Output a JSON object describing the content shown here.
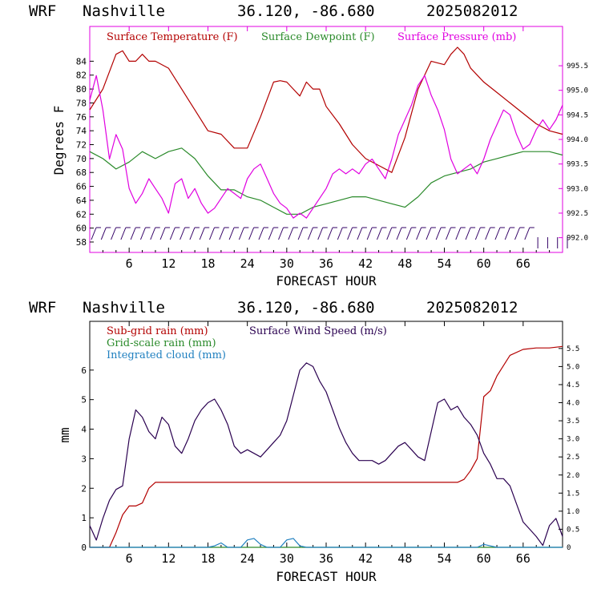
{
  "colors": {
    "temperature": "#b30000",
    "dewpoint": "#2a8a2a",
    "pressure": "#e000e0",
    "subgrid_rain": "#b30000",
    "grid_rain": "#2a8a2a",
    "cloud": "#2080c0",
    "wind": "#2a0050",
    "barb": "#330066",
    "frame_top": "#e000e0",
    "frame_bottom": "#000000"
  },
  "chart_data": [
    {
      "type": "line",
      "header": {
        "model": "WRF",
        "station": "Nashville",
        "coords": "36.120, -86.680",
        "run": "2025082012"
      },
      "xlabel": "FORECAST HOUR",
      "ylabel": "Degrees F",
      "x_ticks": [
        "6",
        "12",
        "18",
        "24",
        "30",
        "36",
        "42",
        "48",
        "54",
        "60",
        "66"
      ],
      "x_tick_values": [
        6,
        12,
        18,
        24,
        30,
        36,
        42,
        48,
        54,
        60,
        66
      ],
      "xlim": [
        0,
        72
      ],
      "ylim": [
        56.5,
        89
      ],
      "y_ticks": [
        "58",
        "60",
        "62",
        "64",
        "66",
        "68",
        "70",
        "72",
        "74",
        "76",
        "78",
        "80",
        "82",
        "84"
      ],
      "y_tick_values": [
        58,
        60,
        62,
        64,
        66,
        68,
        70,
        72,
        74,
        76,
        78,
        80,
        82,
        84
      ],
      "y2lim": [
        991.7,
        996.3
      ],
      "y2_ticks": [
        "992.0",
        "992.5",
        "993.0",
        "993.5",
        "994.0",
        "994.5",
        "995.0",
        "995.5"
      ],
      "y2_tick_values": [
        992.0,
        992.5,
        993.0,
        993.5,
        994.0,
        994.5,
        995.0,
        995.5
      ],
      "legend": [
        "Surface Temperature (F)",
        "Surface Dewpoint (F)",
        "Surface Pressure (mb)"
      ],
      "series": [
        {
          "name": "Surface Temperature (F)",
          "axis": "left",
          "x": [
            0,
            2,
            4,
            5,
            6,
            7,
            8,
            9,
            10,
            12,
            14,
            16,
            18,
            20,
            22,
            24,
            26,
            28,
            29,
            30,
            31,
            32,
            33,
            34,
            35,
            36,
            38,
            40,
            42,
            44,
            46,
            48,
            50,
            52,
            54,
            55,
            56,
            57,
            58,
            60,
            62,
            64,
            66,
            68,
            70,
            72
          ],
          "y": [
            77,
            80,
            85,
            85.5,
            84,
            84,
            85,
            84,
            84,
            83,
            80,
            77,
            74,
            73.5,
            71.5,
            71.5,
            76,
            81,
            81.2,
            81,
            80,
            79,
            81,
            80,
            80,
            77.5,
            75,
            72,
            70,
            69,
            68,
            73,
            80,
            84,
            83.5,
            85,
            86,
            85,
            83,
            81,
            79.5,
            78,
            76.5,
            75,
            74,
            73.5
          ]
        },
        {
          "name": "Surface Dewpoint (F)",
          "axis": "left",
          "x": [
            0,
            2,
            4,
            6,
            8,
            10,
            12,
            14,
            16,
            18,
            20,
            22,
            24,
            26,
            28,
            30,
            32,
            34,
            36,
            38,
            40,
            42,
            44,
            46,
            48,
            50,
            52,
            54,
            56,
            58,
            60,
            62,
            64,
            66,
            68,
            70,
            72
          ],
          "y": [
            71,
            70,
            68.5,
            69.5,
            71,
            70,
            71,
            71.5,
            70,
            67.5,
            65.5,
            65.5,
            64.5,
            64,
            63,
            62,
            62,
            63,
            63.5,
            64,
            64.5,
            64.5,
            64,
            63.5,
            63,
            64.5,
            66.5,
            67.5,
            68,
            68.5,
            69.5,
            70,
            70.5,
            71,
            71,
            71,
            70.5
          ]
        },
        {
          "name": "Surface Pressure (mb)",
          "axis": "right",
          "x": [
            0,
            1,
            2,
            3,
            4,
            5,
            6,
            7,
            8,
            9,
            10,
            11,
            12,
            13,
            14,
            15,
            16,
            17,
            18,
            19,
            20,
            21,
            22,
            23,
            24,
            25,
            26,
            27,
            28,
            29,
            30,
            31,
            32,
            33,
            34,
            35,
            36,
            37,
            38,
            39,
            40,
            41,
            42,
            43,
            44,
            45,
            46,
            47,
            48,
            49,
            50,
            51,
            52,
            53,
            54,
            55,
            56,
            57,
            58,
            59,
            60,
            61,
            62,
            63,
            64,
            65,
            66,
            67,
            68,
            69,
            70,
            71,
            72
          ],
          "y": [
            994.8,
            995.3,
            994.6,
            993.6,
            994.1,
            993.8,
            993.0,
            992.7,
            992.9,
            993.2,
            993.0,
            992.8,
            992.5,
            993.1,
            993.2,
            992.8,
            993.0,
            992.7,
            992.5,
            992.6,
            992.8,
            993.0,
            992.9,
            992.8,
            993.2,
            993.4,
            993.5,
            993.2,
            992.9,
            992.7,
            992.6,
            992.4,
            992.5,
            992.4,
            992.6,
            992.8,
            993.0,
            993.3,
            993.4,
            993.3,
            993.4,
            993.3,
            993.5,
            993.6,
            993.4,
            993.2,
            993.6,
            994.1,
            994.4,
            994.7,
            995.1,
            995.3,
            994.9,
            994.6,
            994.2,
            993.6,
            993.3,
            993.4,
            993.5,
            993.3,
            993.6,
            994.0,
            994.3,
            994.6,
            994.5,
            994.1,
            993.8,
            993.9,
            994.2,
            994.4,
            994.2,
            994.4,
            994.7
          ]
        }
      ]
    },
    {
      "type": "line",
      "header": {
        "model": "WRF",
        "station": "Nashville",
        "coords": "36.120, -86.680",
        "run": "2025082012"
      },
      "xlabel": "FORECAST HOUR",
      "ylabel": "mm",
      "x_ticks": [
        "6",
        "12",
        "18",
        "24",
        "30",
        "36",
        "42",
        "48",
        "54",
        "60",
        "66"
      ],
      "x_tick_values": [
        6,
        12,
        18,
        24,
        30,
        36,
        42,
        48,
        54,
        60,
        66
      ],
      "xlim": [
        0,
        72
      ],
      "ylim": [
        0,
        7.65
      ],
      "y_ticks": [
        "0",
        "1",
        "2",
        "3",
        "4",
        "5",
        "6"
      ],
      "y_tick_values": [
        0,
        1,
        2,
        3,
        4,
        5,
        6
      ],
      "y2lim": [
        0,
        6.25
      ],
      "y2_ticks": [
        "0",
        "0.5",
        "1.0",
        "1.5",
        "2.0",
        "2.5",
        "3.0",
        "3.5",
        "4.0",
        "4.5",
        "5.0",
        "5.5"
      ],
      "y2_tick_values": [
        0,
        0.5,
        1.0,
        1.5,
        2.0,
        2.5,
        3.0,
        3.5,
        4.0,
        4.5,
        5.0,
        5.5
      ],
      "legend": [
        "Sub-grid rain (mm)",
        "Grid-scale rain (mm)",
        "Integrated cloud (mm)",
        "Surface Wind Speed (m/s)"
      ],
      "series": [
        {
          "name": "Sub-grid rain (mm)",
          "axis": "left",
          "x": [
            0,
            3,
            4,
            5,
            6,
            7,
            8,
            9,
            10,
            12,
            20,
            30,
            40,
            50,
            56,
            57,
            58,
            59,
            60,
            61,
            62,
            64,
            66,
            68,
            70,
            72
          ],
          "y": [
            0,
            0,
            0.5,
            1.1,
            1.4,
            1.4,
            1.5,
            2.0,
            2.2,
            2.2,
            2.2,
            2.2,
            2.2,
            2.2,
            2.2,
            2.3,
            2.6,
            3.0,
            5.1,
            5.3,
            5.8,
            6.5,
            6.7,
            6.75,
            6.75,
            6.8
          ]
        },
        {
          "name": "Grid-scale rain (mm)",
          "axis": "left",
          "x": [
            0,
            72
          ],
          "y": [
            0,
            0
          ]
        },
        {
          "name": "Integrated cloud (mm)",
          "axis": "left",
          "x": [
            0,
            18,
            19,
            20,
            21,
            23,
            24,
            25,
            26,
            27,
            29,
            30,
            31,
            32,
            33,
            59,
            60,
            61,
            62,
            72
          ],
          "y": [
            0,
            0,
            0.05,
            0.15,
            0,
            0,
            0.25,
            0.3,
            0.1,
            0,
            0,
            0.25,
            0.3,
            0.05,
            0,
            0,
            0.1,
            0.05,
            0,
            0
          ]
        },
        {
          "name": "Surface Wind Speed (m/s)",
          "axis": "right",
          "x": [
            0,
            1,
            2,
            3,
            4,
            5,
            6,
            7,
            8,
            9,
            10,
            11,
            12,
            13,
            14,
            15,
            16,
            17,
            18,
            19,
            20,
            21,
            22,
            23,
            24,
            25,
            26,
            27,
            28,
            29,
            30,
            31,
            32,
            33,
            34,
            35,
            36,
            37,
            38,
            39,
            40,
            41,
            42,
            43,
            44,
            45,
            46,
            47,
            48,
            49,
            50,
            51,
            52,
            53,
            54,
            55,
            56,
            57,
            58,
            59,
            60,
            61,
            62,
            63,
            64,
            65,
            66,
            67,
            68,
            69,
            70,
            71,
            72
          ],
          "y": [
            0.6,
            0.2,
            0.8,
            1.3,
            1.6,
            1.7,
            3.0,
            3.8,
            3.6,
            3.2,
            3.0,
            3.6,
            3.4,
            2.8,
            2.6,
            3.0,
            3.5,
            3.8,
            4.0,
            4.1,
            3.8,
            3.4,
            2.8,
            2.6,
            2.7,
            2.6,
            2.5,
            2.7,
            2.9,
            3.1,
            3.5,
            4.2,
            4.9,
            5.1,
            5.0,
            4.6,
            4.3,
            3.8,
            3.3,
            2.9,
            2.6,
            2.4,
            2.4,
            2.4,
            2.3,
            2.4,
            2.6,
            2.8,
            2.9,
            2.7,
            2.5,
            2.4,
            3.2,
            4.0,
            4.1,
            3.8,
            3.9,
            3.6,
            3.4,
            3.1,
            2.6,
            2.3,
            1.9,
            1.9,
            1.7,
            1.2,
            0.7,
            0.5,
            0.3,
            0.05,
            0.6,
            0.8,
            0.3
          ]
        }
      ]
    }
  ]
}
